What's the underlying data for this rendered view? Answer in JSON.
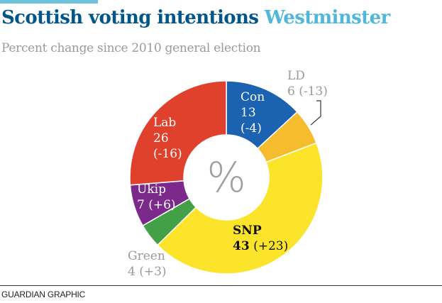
{
  "header": {
    "title_main": "Scottish voting intentions",
    "title_accent": "Westminster",
    "subtitle": "Percent change since 2010 general election"
  },
  "center_symbol": "%",
  "footer": {
    "credit": "GUARDIAN GRAPHIC"
  },
  "chart_data": {
    "type": "pie",
    "variant": "donut",
    "title": "Scottish voting intentions Westminster",
    "subtitle": "Percent change since 2010 general election",
    "unit": "%",
    "slices": [
      {
        "name": "Con",
        "value": 13,
        "change": "(-4)",
        "color": "#1b62b0"
      },
      {
        "name": "LD",
        "value": 6,
        "change": "(-13)",
        "color": "#f5bd2e"
      },
      {
        "name": "SNP",
        "value": 43,
        "change": "(+23)",
        "color": "#fbe42a"
      },
      {
        "name": "Green",
        "value": 4,
        "change": "(+3)",
        "color": "#43a047"
      },
      {
        "name": "Ukip",
        "value": 7,
        "change": "(+6)",
        "color": "#7b2a8c"
      },
      {
        "name": "Lab",
        "value": 26,
        "change": "(-16)",
        "color": "#e0412c"
      }
    ]
  }
}
